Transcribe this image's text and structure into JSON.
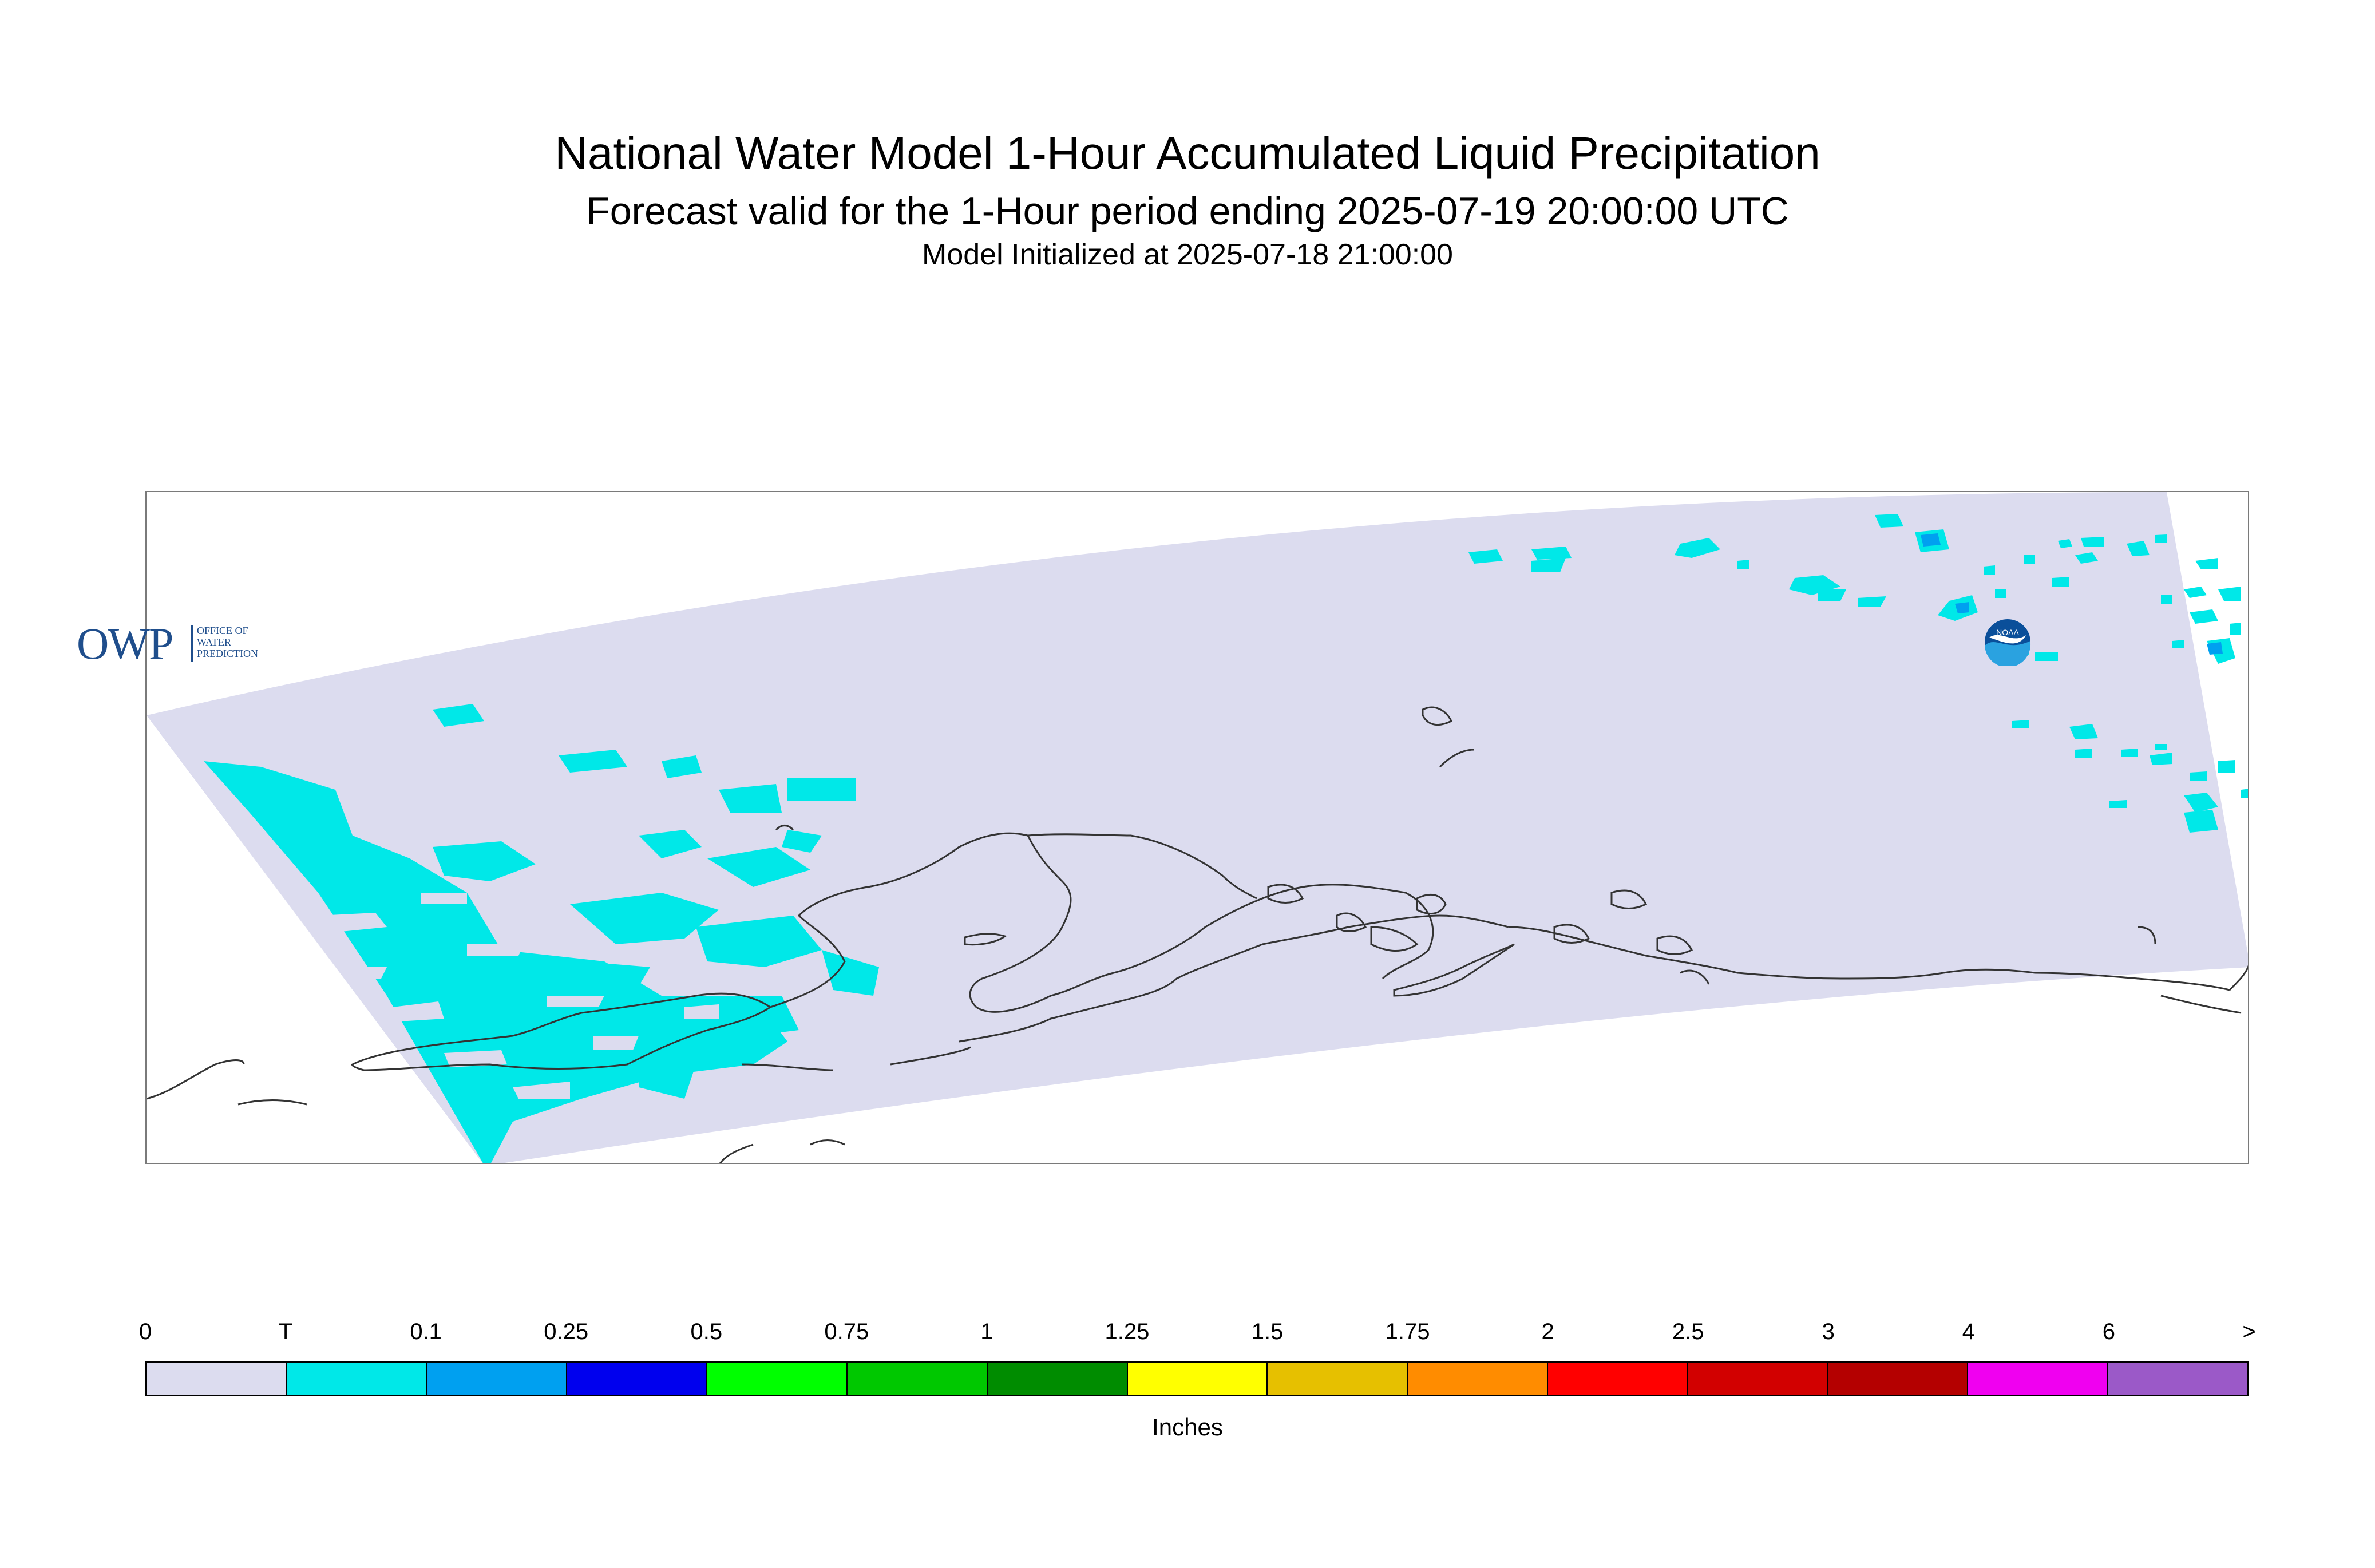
{
  "title": "National Water Model 1-Hour Accumulated Liquid Precipitation",
  "subtitle": "Forecast valid for the 1-Hour period ending 2025-07-19 20:00:00 UTC",
  "init_line": "Model Initialized at 2025-07-18 21:00:00",
  "logo_owp": {
    "mark": "OWP",
    "text_lines": [
      "OFFICE OF",
      "WATER",
      "PREDICTION"
    ]
  },
  "logo_noaa": {
    "text": "NOAA",
    "icon": "noaa-logo-icon"
  },
  "legend": {
    "units": "Inches",
    "ticks": [
      "0",
      "T",
      "0.1",
      "0.25",
      "0.5",
      "0.75",
      "1",
      "1.25",
      "1.5",
      "1.75",
      "2",
      "2.5",
      "3",
      "4",
      "6",
      ">"
    ],
    "colors": [
      "#dcdcef",
      "#00e8e8",
      "#00a0f0",
      "#0000ee",
      "#00ff00",
      "#00c800",
      "#008c00",
      "#ffff00",
      "#e6c000",
      "#ff8c00",
      "#ff0000",
      "#d20000",
      "#b40000",
      "#f000f0",
      "#9b59c8"
    ]
  },
  "map": {
    "domain_color": "#dcdcef",
    "precip_color": "#00e8e8",
    "precip_heavy_color": "#00a0f0",
    "coast_color": "#333333"
  }
}
